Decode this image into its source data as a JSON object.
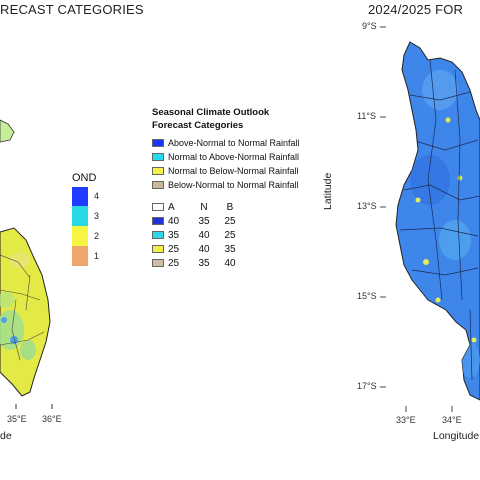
{
  "left_map": {
    "title": "RECAST CATEGORIES",
    "season_label": "OND",
    "scale": [
      "4",
      "3",
      "2",
      "1"
    ],
    "scale_colors": [
      "#1f3cff",
      "#2ad8e8",
      "#f5f542",
      "#f0a66a"
    ],
    "x_ticks": [
      "35°E",
      "36°E"
    ],
    "x_axis_partial": "de"
  },
  "right_map": {
    "title": "2024/2025 FOR",
    "y_ticks": [
      "9°S",
      "11°S",
      "13°S",
      "15°S",
      "17°S"
    ],
    "x_ticks": [
      "33°E",
      "34°E"
    ],
    "y_axis_label": "Latitude",
    "x_axis_label": "Longitude"
  },
  "legend": {
    "heading_line1": "Seasonal Climate Outlook",
    "heading_line2": "Forecast Categories",
    "categories": [
      {
        "label": "Above-Normal to Normal Rainfall",
        "color": "#1a33ff"
      },
      {
        "label": "Normal to Above-Normal Rainfall",
        "color": "#29d9ef"
      },
      {
        "label": "Normal to Below-Normal Rainfall",
        "color": "#f4f14a"
      },
      {
        "label": "Below-Normal to Normal Rainfall",
        "color": "#c9b89a"
      }
    ],
    "prob_header": [
      "A",
      "N",
      "B"
    ],
    "prob_rows": [
      {
        "color": "#1f33d8",
        "values": [
          "40",
          "35",
          "25"
        ]
      },
      {
        "color": "#2fd6ea",
        "values": [
          "35",
          "40",
          "25"
        ]
      },
      {
        "color": "#f3ee47",
        "values": [
          "25",
          "40",
          "35"
        ]
      },
      {
        "color": "#cdbda3",
        "values": [
          "25",
          "35",
          "40"
        ]
      }
    ]
  },
  "colors": {
    "blue_map": "#3d7de8",
    "yellow_map": "#d8e84a",
    "boundary": "#333333"
  }
}
